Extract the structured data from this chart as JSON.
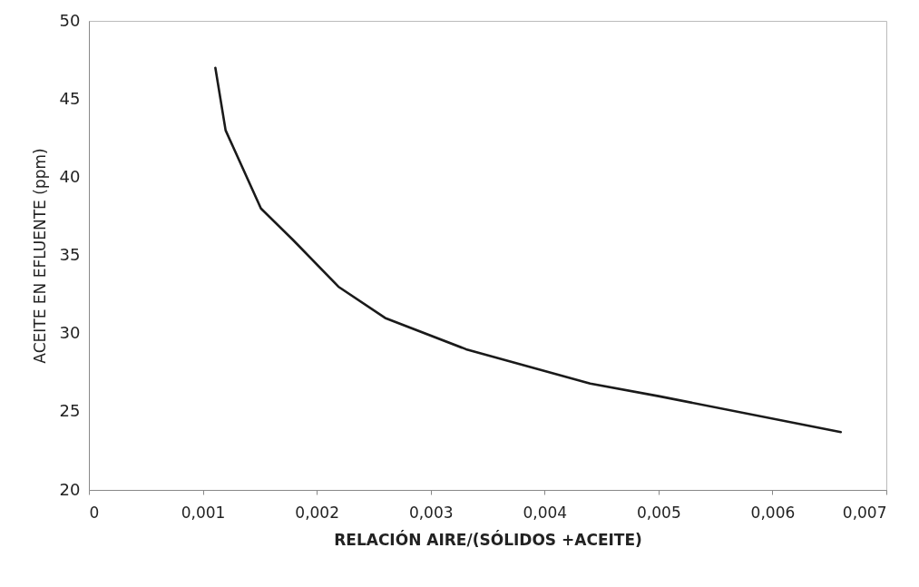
{
  "chart_data": {
    "type": "line",
    "xlabel": "RELACIÓN AIRE/(SÓLIDOS +ACEITE)",
    "ylabel": "ACEITE EN EFLUENTE (ppm)",
    "x": [
      0.00111,
      0.0012,
      0.00151,
      0.00179,
      0.00219,
      0.0026,
      0.00331,
      0.0044,
      0.005,
      0.0066
    ],
    "series": [
      {
        "color": "#1a1a1a",
        "values": [
          47,
          43,
          38,
          36,
          33,
          31,
          29,
          26.8,
          26,
          23.7
        ]
      }
    ],
    "xlim": [
      0,
      0.007
    ],
    "xticks": [
      0,
      {
        "value": 0.001,
        "label": "0,001"
      },
      {
        "value": 0.002,
        "label": "0,002"
      },
      {
        "value": 0.003,
        "label": "0,003"
      },
      {
        "value": 0.004,
        "label": "0,004"
      },
      {
        "value": 0.005,
        "label": "0,005"
      },
      {
        "value": 0.006,
        "label": "0,006"
      },
      {
        "value": 0.007,
        "label": "0,007"
      }
    ],
    "ylim": [
      20,
      50
    ],
    "yticks": [
      20,
      25,
      30,
      35,
      40,
      45,
      50
    ],
    "grid": false,
    "marker": "none",
    "line_style": "solid"
  }
}
